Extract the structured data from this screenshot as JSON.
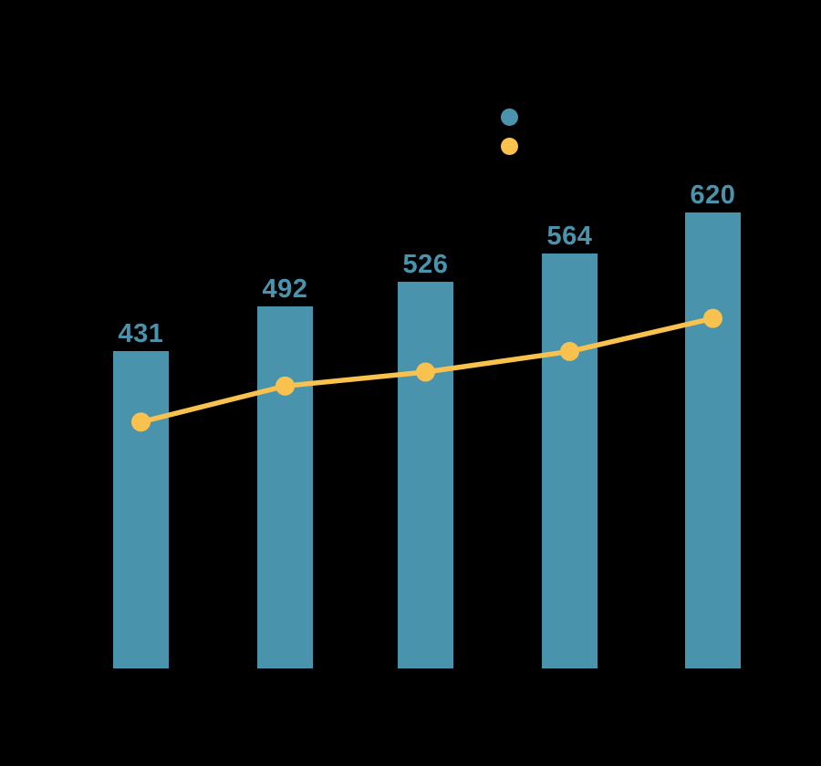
{
  "canvas": {
    "background_color": "#000000"
  },
  "legend": {
    "position": "top-center",
    "markers": [
      {
        "series": "bar-series",
        "color": "#4A93AC"
      },
      {
        "series": "line-series",
        "color": "#F9C14E"
      }
    ]
  },
  "chart_data": {
    "type": "bar+line",
    "title": "",
    "xlabel": "",
    "ylabel": "",
    "axes_visible": false,
    "gridlines": false,
    "legend_position": "top-center",
    "baseline_value": 0,
    "series": [
      {
        "name": "bar-series",
        "chart_type": "bar",
        "color": "#4A93AC",
        "values": [
          431,
          492,
          526,
          564,
          620
        ],
        "data_labels": [
          "431",
          "492",
          "526",
          "564",
          "620"
        ],
        "data_label_color": "#4A93AC"
      },
      {
        "name": "line-series",
        "chart_type": "line",
        "color": "#F9C14E",
        "marker": "circle",
        "values": [
          335,
          384,
          403,
          431,
          476
        ],
        "values_estimated_from_pixels": true
      }
    ]
  }
}
